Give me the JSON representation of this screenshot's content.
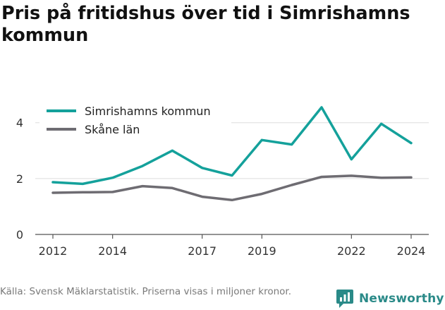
{
  "title": "Pris på fritidshus över tid i Simrishamns kommun",
  "source": "Källa: Svensk Mäklarstatistik. Priserna visas i miljoner kronor.",
  "brand": "Newsworthy",
  "colors": {
    "series_teal": "#14a19b",
    "series_grey": "#6e6c72",
    "grid": "#dddddd",
    "axis": "#555555",
    "brand": "#2a8a88"
  },
  "chart_data": {
    "type": "line",
    "title": "Pris på fritidshus över tid i Simrishamns kommun",
    "xlabel": "",
    "ylabel": "",
    "x": [
      2012,
      2013,
      2014,
      2015,
      2016,
      2017,
      2018,
      2019,
      2020,
      2021,
      2022,
      2023,
      2024
    ],
    "xticks": [
      2012,
      2014,
      2017,
      2019,
      2022,
      2024
    ],
    "yticks": [
      0,
      2,
      4
    ],
    "ylim": [
      0,
      4.6
    ],
    "grid": true,
    "legend": "top-left",
    "series": [
      {
        "name": "Simrishamns kommun",
        "color": "#14a19b",
        "values": [
          1.87,
          1.81,
          2.03,
          2.45,
          3.0,
          2.38,
          2.11,
          3.38,
          3.22,
          4.55,
          2.69,
          3.96,
          3.27
        ]
      },
      {
        "name": "Skåne län",
        "color": "#6e6c72",
        "values": [
          1.49,
          1.51,
          1.52,
          1.73,
          1.66,
          1.35,
          1.23,
          1.45,
          1.77,
          2.06,
          2.1,
          2.03,
          2.04
        ]
      }
    ]
  }
}
